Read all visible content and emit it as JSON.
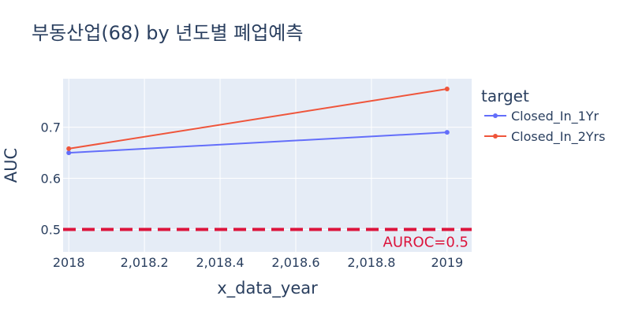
{
  "chart_data": {
    "type": "line",
    "title": "부동산업(68) by 년도별 폐업예측",
    "xlabel": "x_data_year",
    "ylabel": "AUC",
    "x": [
      2018,
      2019
    ],
    "xlim": [
      2017.985,
      2019.065
    ],
    "ylim": [
      0.456,
      0.795
    ],
    "x_ticks": [
      2018,
      2018.2,
      2018.4,
      2018.6,
      2018.8,
      2019
    ],
    "x_tick_labels": [
      "2018",
      "2,018.2",
      "2,018.4",
      "2,018.6",
      "2,018.8",
      "2019"
    ],
    "y_ticks": [
      0.5,
      0.6,
      0.7
    ],
    "y_tick_labels": [
      "0.5",
      "0.6",
      "0.7"
    ],
    "grid": true,
    "legend_title": "target",
    "legend_position": "right",
    "series": [
      {
        "name": "Closed_In_1Yr",
        "color": "#636efa",
        "values": [
          0.65,
          0.69
        ]
      },
      {
        "name": "Closed_In_2Yrs",
        "color": "#ef553b",
        "values": [
          0.658,
          0.775
        ]
      }
    ],
    "reference_line": {
      "y": 0.5,
      "label": "AUROC=0.5",
      "color": "#dc143c",
      "style": "dashed"
    }
  }
}
